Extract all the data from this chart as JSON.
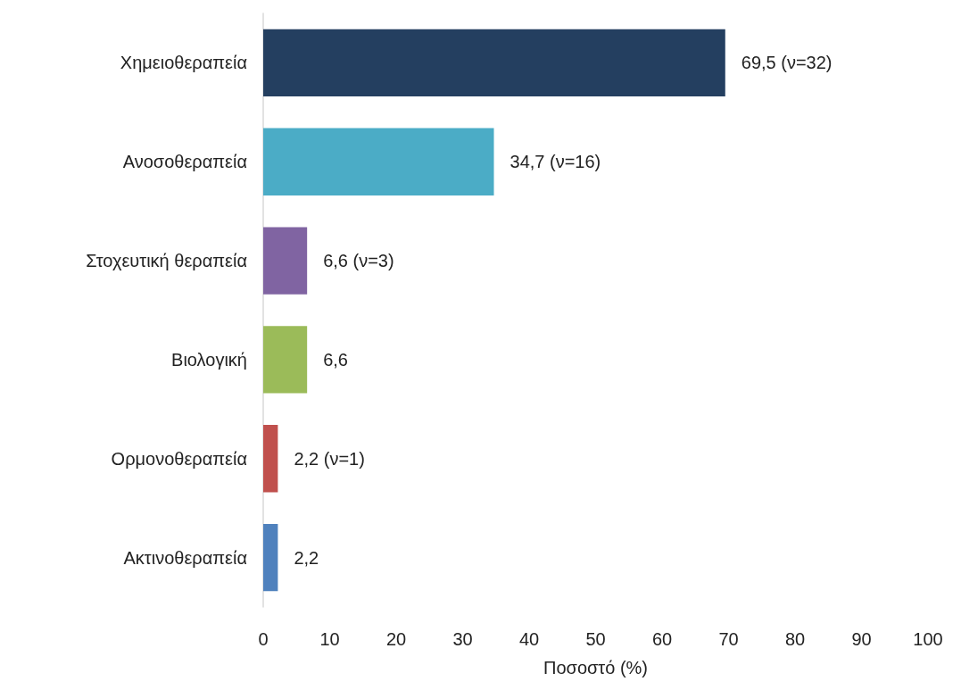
{
  "chart_data": {
    "type": "bar",
    "orientation": "horizontal",
    "xlabel": "Ποσοστό (%)",
    "categories": [
      "Χημειοθεραπεία",
      "Ανοσοθεραπεία",
      "Στοχευτική θεραπεία",
      "Βιολογική",
      "Ορμονοθεραπεία",
      "Ακτινοθεραπεία"
    ],
    "values": [
      69.5,
      34.7,
      6.6,
      6.6,
      2.2,
      2.2
    ],
    "colors": [
      "#243f60",
      "#4bacc6",
      "#8064a2",
      "#9bbb59",
      "#c0504d",
      "#4f81bd"
    ],
    "value_labels": [
      "69,5 (ν=32)",
      "34,7 (ν=16)",
      "6,6 (ν=3)",
      "6,6",
      "2,2 (ν=1)",
      "2,2"
    ],
    "xlim": [
      0,
      100
    ],
    "xticks": [
      0,
      10,
      20,
      30,
      40,
      50,
      60,
      70,
      80,
      90,
      100
    ]
  }
}
